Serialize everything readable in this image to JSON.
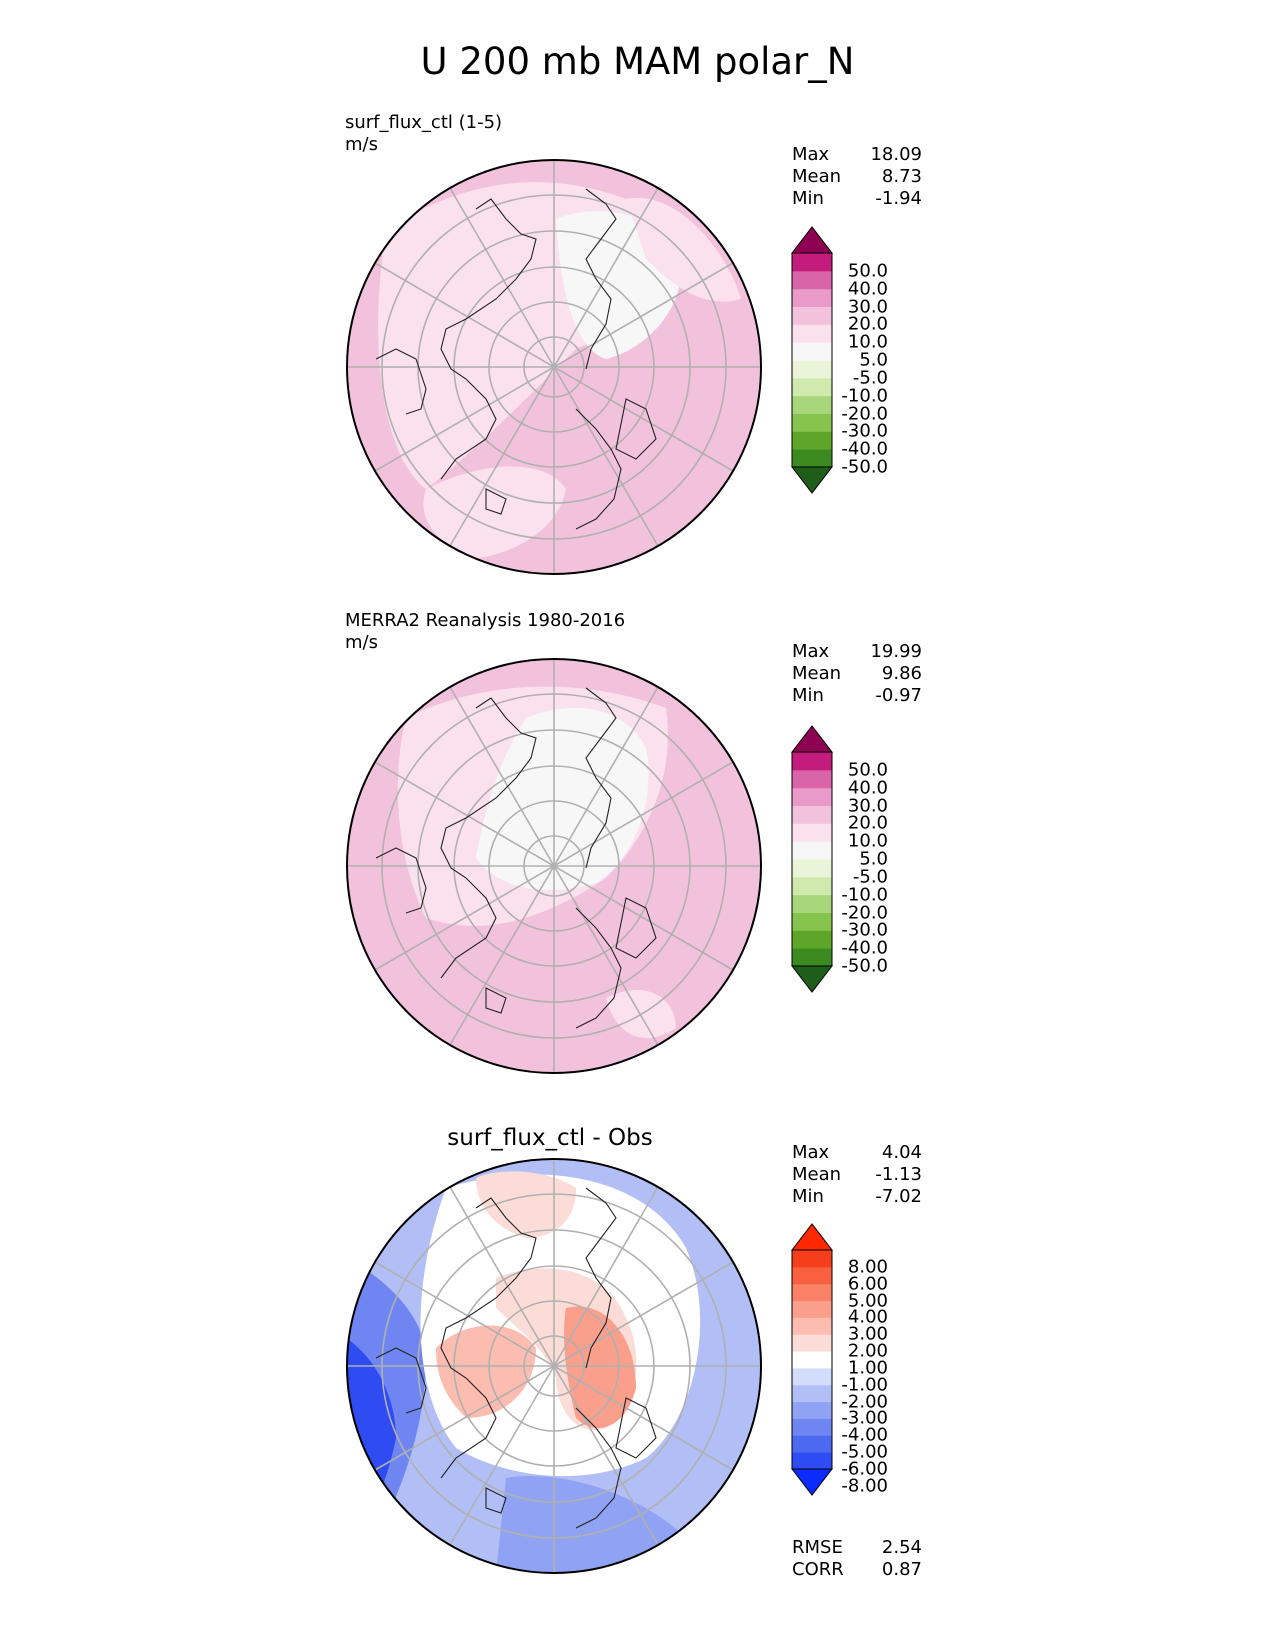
{
  "title": "U 200 mb MAM polar_N",
  "panels": [
    {
      "label": "surf_flux_ctl (1-5)",
      "units": "m/s",
      "stats": {
        "max_label": "Max",
        "max": "18.09",
        "mean_label": "Mean",
        "mean": "8.73",
        "min_label": "Min",
        "min": "-1.94"
      },
      "colorbar": {
        "colors": [
          "#1f5d1a",
          "#3c8a1f",
          "#5ea629",
          "#86c44e",
          "#a8d67a",
          "#cfeaac",
          "#e9f4d8",
          "#f7f7f7",
          "#fbe1ee",
          "#f2c2dd",
          "#e99ac8",
          "#da64a8",
          "#c41c7d",
          "#8e0152"
        ],
        "labels": [
          "50.0",
          "40.0",
          "30.0",
          "20.0",
          "10.0",
          "5.0",
          "-5.0",
          "-10.0",
          "-20.0",
          "-30.0",
          "-40.0",
          "-50.0"
        ]
      }
    },
    {
      "label": "MERRA2 Reanalysis 1980-2016",
      "units": "m/s",
      "stats": {
        "max_label": "Max",
        "max": "19.99",
        "mean_label": "Mean",
        "mean": "9.86",
        "min_label": "Min",
        "min": "-0.97"
      },
      "colorbar": {
        "colors": [
          "#1f5d1a",
          "#3c8a1f",
          "#5ea629",
          "#86c44e",
          "#a8d67a",
          "#cfeaac",
          "#e9f4d8",
          "#f7f7f7",
          "#fbe1ee",
          "#f2c2dd",
          "#e99ac8",
          "#da64a8",
          "#c41c7d",
          "#8e0152"
        ],
        "labels": [
          "50.0",
          "40.0",
          "30.0",
          "20.0",
          "10.0",
          "5.0",
          "-5.0",
          "-10.0",
          "-20.0",
          "-30.0",
          "-40.0",
          "-50.0"
        ]
      }
    },
    {
      "title": "surf_flux_ctl - Obs",
      "stats": {
        "max_label": "Max",
        "max": "4.04",
        "mean_label": "Mean",
        "mean": "-1.13",
        "min_label": "Min",
        "min": "-7.02"
      },
      "colorbar": {
        "colors": [
          "#0c2bff",
          "#2e4cf2",
          "#4c6af0",
          "#6f86f2",
          "#90a2f4",
          "#b2bff6",
          "#d3dcfb",
          "#ffffff",
          "#fcdcd6",
          "#fcbcb0",
          "#fb9f8d",
          "#fa8066",
          "#f9603f",
          "#f53f1c",
          "#ff2800"
        ],
        "labels": [
          "8.00",
          "6.00",
          "5.00",
          "4.00",
          "3.00",
          "2.00",
          "1.00",
          "-1.00",
          "-2.00",
          "-3.00",
          "-4.00",
          "-5.00",
          "-6.00",
          "-8.00"
        ]
      },
      "metrics": {
        "rmse_label": "RMSE",
        "rmse": "2.54",
        "corr_label": "CORR",
        "corr": "0.87"
      }
    }
  ]
}
